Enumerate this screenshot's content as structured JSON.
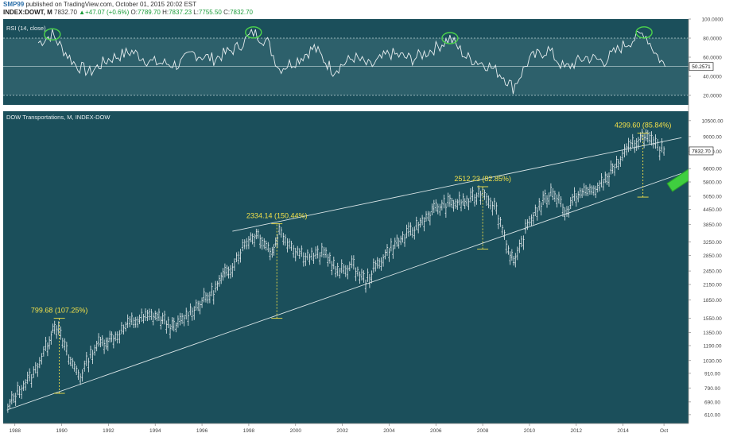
{
  "header": {
    "user": "SMP99",
    "published": "published on TradingView.com, October 01, 2015 20:02 EST",
    "symbol": "INDEX:DOWT, M",
    "last": "7832.70",
    "change": "+47.07 (+0.6%)",
    "open_label": "O:",
    "open": "7789.70",
    "high_label": "H:",
    "high": "7837.23",
    "low_label": "L:",
    "low": "7755.50",
    "close_label": "C:",
    "close": "7832.70"
  },
  "colors": {
    "panel_bg": "#1b4f5b",
    "rsi_band": "#3d6f79",
    "line": "#e8eef0",
    "annotation": "#f2e04a",
    "circle": "#4cd44c",
    "arrow": "#3fcf3f",
    "axis_bg": "#ffffff"
  },
  "chart_data": [
    {
      "type": "line",
      "title": "RSI (14, close)",
      "ylim": [
        10,
        100
      ],
      "y_ticks": [
        "100.0000",
        "80.0000",
        "60.0000",
        "40.0000",
        "20.0000"
      ],
      "y_tick_values": [
        100,
        80,
        60,
        40,
        20
      ],
      "bands": [
        20,
        80
      ],
      "current_value": 50.2571,
      "current_label": "50.2571",
      "x": [
        1989.0,
        1989.6,
        1990.0,
        1990.6,
        1991.2,
        1992.0,
        1993.0,
        1993.8,
        1995.0,
        1995.6,
        1996.5,
        1997.5,
        1998.2,
        1998.8,
        1999.3,
        2000.0,
        2000.8,
        2001.6,
        2002.5,
        2003.2,
        2004.0,
        2005.0,
        2006.0,
        2006.6,
        2007.3,
        2008.2,
        2008.9,
        2009.3,
        2010.0,
        2010.8,
        2011.5,
        2012.4,
        2013.2,
        2014.0,
        2014.9,
        2015.4,
        2015.8
      ],
      "values": [
        75,
        84,
        70,
        52,
        44,
        58,
        66,
        55,
        52,
        64,
        58,
        70,
        86,
        76,
        48,
        56,
        70,
        46,
        60,
        50,
        64,
        58,
        70,
        80,
        60,
        52,
        40,
        28,
        58,
        68,
        48,
        60,
        56,
        72,
        86,
        64,
        50
      ],
      "peaks_circled": [
        {
          "x": 1989.6,
          "value": 84
        },
        {
          "x": 1998.2,
          "value": 86
        },
        {
          "x": 2006.6,
          "value": 80
        },
        {
          "x": 2014.9,
          "value": 86
        }
      ]
    },
    {
      "type": "ohlc",
      "title": "DOW Transportations, M, INDEX-DOW",
      "scale": "log",
      "ylim": [
        560,
        11500
      ],
      "y_ticks": [
        "10500.00",
        "9000.00",
        "7800.00",
        "6600.00",
        "5800.00",
        "5050.00",
        "4450.00",
        "3850.00",
        "3250.00",
        "2850.00",
        "2450.00",
        "2150.00",
        "1850.00",
        "1550.00",
        "1350.00",
        "1190.00",
        "1030.00",
        "910.00",
        "790.00",
        "690.00",
        "610.00"
      ],
      "y_tick_values": [
        10500,
        9000,
        7800,
        6600,
        5800,
        5050,
        4450,
        3850,
        3250,
        2850,
        2450,
        2150,
        1850,
        1550,
        1350,
        1190,
        1030,
        910,
        790,
        690,
        610
      ],
      "last_price_label": "7832.70",
      "last_price": 7832.7,
      "x_ticks": [
        "1988",
        "1990",
        "1992",
        "1994",
        "1996",
        "1998",
        "2000",
        "2002",
        "2004",
        "2006",
        "2008",
        "2010",
        "2012",
        "2014",
        "Oct"
      ],
      "x_tick_values": [
        1988,
        1990,
        1992,
        1994,
        1996,
        1998,
        2000,
        2002,
        2004,
        2006,
        2008,
        2010,
        2012,
        2014,
        2015.75
      ],
      "xlim": [
        1987.5,
        2016.8
      ],
      "path_x": [
        1987.7,
        1988.2,
        1988.8,
        1989.4,
        1989.7,
        1990.3,
        1990.8,
        1991.5,
        1992.3,
        1993.0,
        1994.0,
        1994.8,
        1995.5,
        1996.5,
        1997.3,
        1998.0,
        1998.4,
        1999.0,
        1999.3,
        2000.0,
        2000.6,
        2001.3,
        2001.8,
        2002.4,
        2003.0,
        2004.0,
        2005.0,
        2006.0,
        2006.6,
        2007.4,
        2008.0,
        2008.5,
        2009.1,
        2009.4,
        2010.0,
        2011.0,
        2011.6,
        2012.0,
        2013.0,
        2013.8,
        2014.5,
        2014.9,
        2015.3,
        2015.75
      ],
      "path_values": [
        650,
        780,
        900,
        1200,
        1480,
        1050,
        880,
        1200,
        1300,
        1500,
        1600,
        1400,
        1650,
        2000,
        2600,
        3350,
        3500,
        2900,
        3600,
        3000,
        2800,
        2900,
        2400,
        2600,
        2200,
        3000,
        3600,
        4500,
        4700,
        4800,
        5300,
        4600,
        3000,
        2600,
        4000,
        5300,
        4300,
        5100,
        5500,
        7000,
        8500,
        9100,
        8300,
        7830
      ],
      "trendlines": [
        {
          "name": "lower",
          "x": [
            1987.7,
            2016.5
          ],
          "values": [
            640,
            6300
          ]
        },
        {
          "name": "upper",
          "x": [
            1997.3,
            2016.5
          ],
          "values": [
            3600,
            8900
          ]
        }
      ],
      "annotations": [
        {
          "label": "799.68 (107.25%)",
          "x": 1989.9,
          "from": 750,
          "to": 1550
        },
        {
          "label": "2334.14 (150.44%)",
          "x": 1999.2,
          "from": 1550,
          "to": 3870
        },
        {
          "label": "2512.23 (82.85%)",
          "x": 2008.0,
          "from": 3030,
          "to": 5540
        },
        {
          "label": "4299.60 (85.84%)",
          "x": 2014.85,
          "from": 5010,
          "to": 9300
        }
      ],
      "arrow": {
        "x": [
          2016.0,
          2017.0
        ],
        "values": [
          5500,
          6400
        ]
      }
    }
  ]
}
